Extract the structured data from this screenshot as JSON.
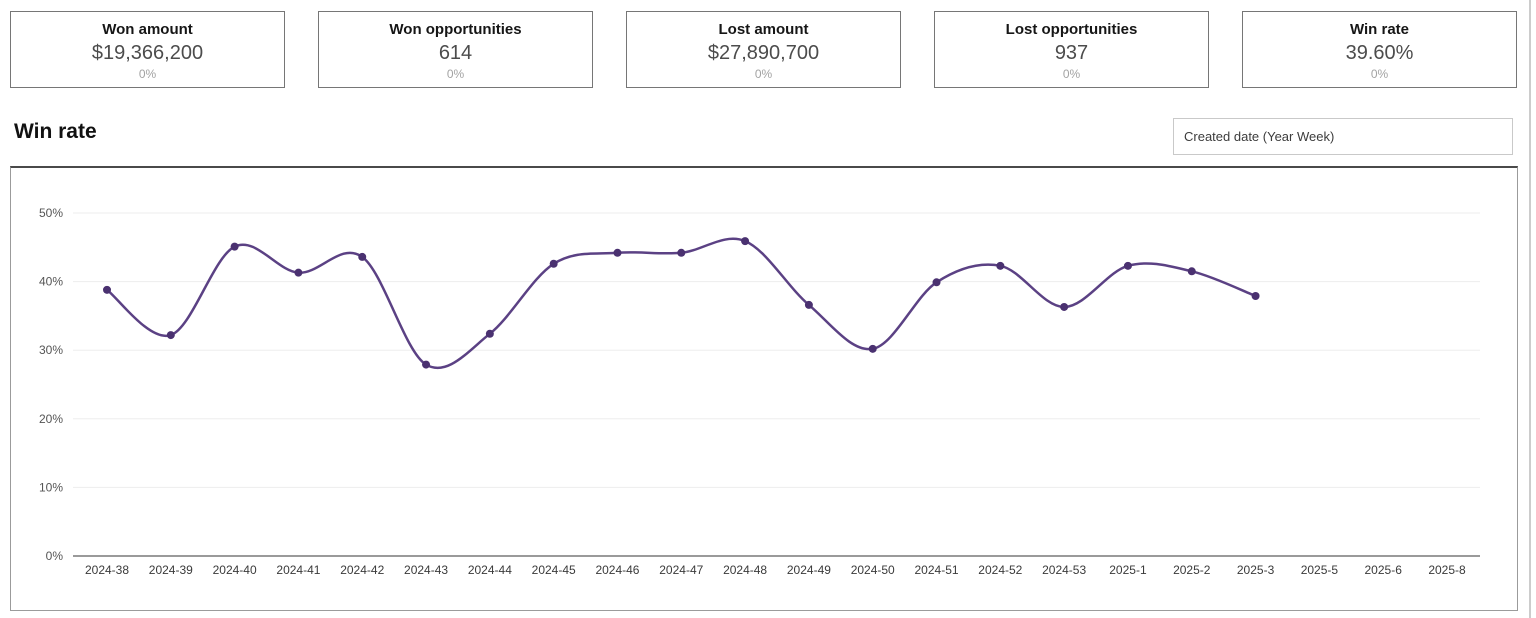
{
  "kpi_cards": [
    {
      "label": "Won amount",
      "value": "$19,366,200",
      "delta": "0%"
    },
    {
      "label": "Won opportunities",
      "value": "614",
      "delta": "0%"
    },
    {
      "label": "Lost amount",
      "value": "$27,890,700",
      "delta": "0%"
    },
    {
      "label": "Lost opportunities",
      "value": "937",
      "delta": "0%"
    },
    {
      "label": "Win rate",
      "value": "39.60%",
      "delta": "0%"
    }
  ],
  "section": {
    "title": "Win rate",
    "dimension_selector_value": "Created date (Year Week)"
  },
  "chart_data": {
    "type": "line",
    "title": "Win rate",
    "x": [
      "2024-38",
      "2024-39",
      "2024-40",
      "2024-41",
      "2024-42",
      "2024-43",
      "2024-44",
      "2024-45",
      "2024-46",
      "2024-47",
      "2024-48",
      "2024-49",
      "2024-50",
      "2024-51",
      "2024-52",
      "2024-53",
      "2025-1",
      "2025-2",
      "2025-3",
      "2025-5",
      "2025-6",
      "2025-8"
    ],
    "values": [
      38.8,
      32.2,
      45.1,
      41.3,
      43.6,
      27.9,
      32.4,
      42.6,
      44.2,
      44.2,
      45.9,
      36.6,
      30.2,
      39.9,
      42.3,
      36.3,
      42.3,
      41.5,
      37.9,
      null,
      null,
      null
    ],
    "y_ticks_percent": [
      0,
      10,
      20,
      30,
      40,
      50
    ],
    "ylim": [
      0,
      56
    ],
    "grid": true,
    "legend": "none",
    "line_color": "#5b4184",
    "marker_color": "#4a3170",
    "gridline_color": "#ededed",
    "axis_line_color": "#9a9a9a"
  }
}
